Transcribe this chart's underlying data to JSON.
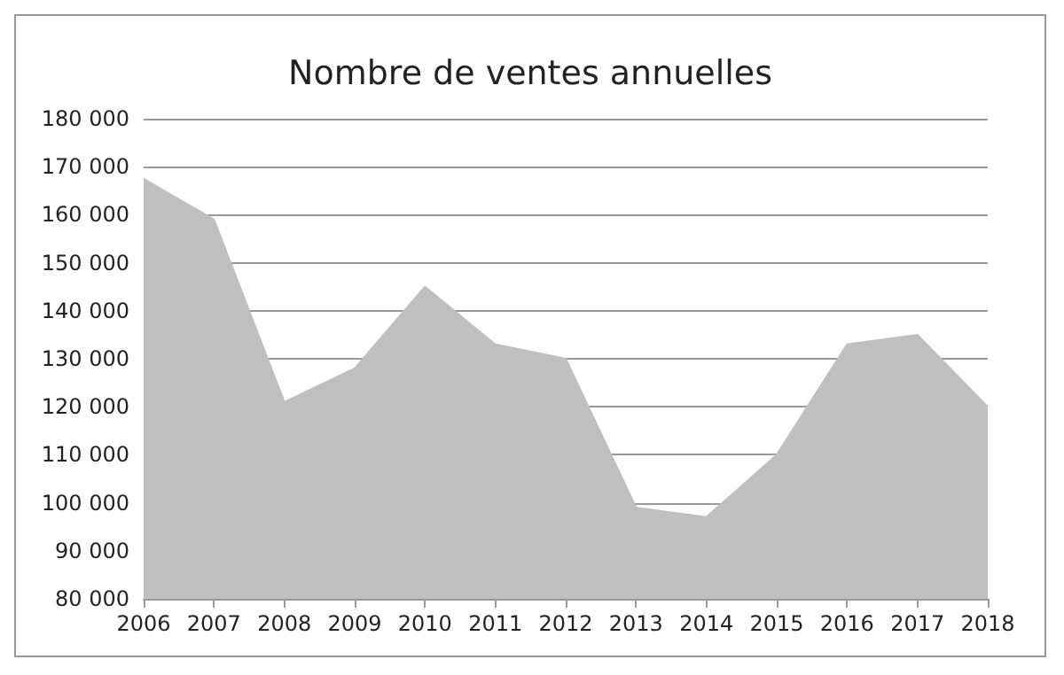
{
  "chart_data": {
    "type": "area",
    "title": "Nombre de ventes annuelles",
    "categories": [
      "2006",
      "2007",
      "2008",
      "2009",
      "2010",
      "2011",
      "2012",
      "2013",
      "2014",
      "2015",
      "2016",
      "2017",
      "2018"
    ],
    "values": [
      167500,
      159000,
      121000,
      128000,
      145000,
      133000,
      130000,
      99000,
      97000,
      110000,
      133000,
      135000,
      120000
    ],
    "color": "#bfbfbf",
    "ylim": [
      80000,
      180000
    ],
    "yticks": [
      {
        "value": 80000,
        "label": "80 000"
      },
      {
        "value": 90000,
        "label": "90 000"
      },
      {
        "value": 100000,
        "label": "100 000"
      },
      {
        "value": 110000,
        "label": "110 000"
      },
      {
        "value": 120000,
        "label": "120 000"
      },
      {
        "value": 130000,
        "label": "130 000"
      },
      {
        "value": 140000,
        "label": "140 000"
      },
      {
        "value": 150000,
        "label": "150 000"
      },
      {
        "value": 160000,
        "label": "160 000"
      },
      {
        "value": 170000,
        "label": "170 000"
      },
      {
        "value": 180000,
        "label": "180 000"
      }
    ],
    "grid": "y"
  }
}
